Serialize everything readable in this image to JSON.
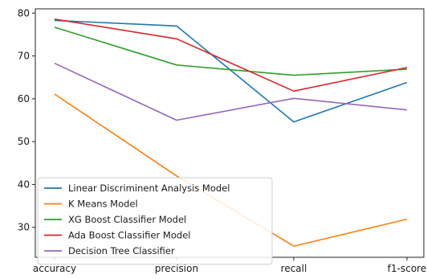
{
  "chart_data": {
    "type": "line",
    "title": "",
    "xlabel": "",
    "ylabel": "",
    "categories": [
      "accuracy",
      "precision",
      "recall",
      "f1-score"
    ],
    "ylim": [
      23,
      81
    ],
    "y_ticks": [
      30,
      40,
      50,
      60,
      70,
      80
    ],
    "grid": false,
    "legend_position": "lower-left",
    "series": [
      {
        "name": "Linear Discriminent Analysis Model",
        "color": "#1f77b4",
        "values": [
          78.3,
          77.0,
          54.6,
          63.8
        ]
      },
      {
        "name": "K Means Model",
        "color": "#ff7f0e",
        "values": [
          61.1,
          42.0,
          25.6,
          31.9
        ]
      },
      {
        "name": "XG Boost Classifier Model",
        "color": "#2ca02c",
        "values": [
          76.7,
          67.9,
          65.5,
          66.9
        ]
      },
      {
        "name": "Ada Boost Classifier Model",
        "color": "#d62728",
        "values": [
          78.6,
          74.0,
          61.8,
          67.3
        ]
      },
      {
        "name": "Decision Tree Classifier",
        "color": "#9467bd",
        "values": [
          68.3,
          55.0,
          60.1,
          57.4
        ]
      }
    ]
  }
}
